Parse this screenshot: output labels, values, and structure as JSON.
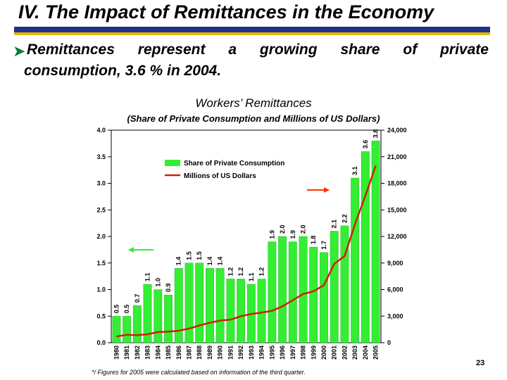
{
  "slide": {
    "title": "IV. The Impact of Remittances in the Economy",
    "bullet_words_line1": [
      "Remittances",
      "represent",
      "a",
      "growing",
      "share",
      "of",
      "private"
    ],
    "bullet_line2": "consumption, 3.6 % in 2004.",
    "footnote": "*/ Figures for 2005 were calculated based on information of the third quarter.",
    "page_number": "23"
  },
  "colors": {
    "bar": "#33ee33",
    "line": "#cc2200",
    "arrow": "#ff3300",
    "bullet": "#0e7a3b",
    "title_rule": "#1f2f8c",
    "title_rule_accent": "#e6b800"
  },
  "chart_data": {
    "type": "bar",
    "title": "Workers’ Remittances",
    "subtitle": "(Share of Private Consumption and Millions of US Dollars)",
    "categories": [
      "1980",
      "1981",
      "1982",
      "1983",
      "1984",
      "1985",
      "1986",
      "1987",
      "1988",
      "1989",
      "1990",
      "1991",
      "1992",
      "1993",
      "1994",
      "1995",
      "1996",
      "1997",
      "1998",
      "1999",
      "2000",
      "2001",
      "2002",
      "2003",
      "2004",
      "2005"
    ],
    "series": [
      {
        "name": "Share of Private Consumption",
        "type": "bar",
        "axis": "left",
        "values": [
          0.5,
          0.5,
          0.7,
          1.1,
          1.0,
          0.9,
          1.4,
          1.5,
          1.5,
          1.4,
          1.4,
          1.2,
          1.2,
          1.1,
          1.2,
          1.9,
          2.0,
          1.9,
          2.0,
          1.8,
          1.7,
          2.1,
          2.2,
          3.1,
          3.6,
          3.8
        ],
        "labels": [
          "0.5",
          "0.5",
          "0.7",
          "1.1",
          "1.0",
          "0.9",
          "1.4",
          "1.5",
          "1.5",
          "1.4",
          "1.4",
          "1.2",
          "1.2",
          "1.1",
          "1.2",
          "1.9",
          "2.0",
          "1.9",
          "2.0",
          "1.8",
          "1.7",
          "2.1",
          "2.2",
          "3.1",
          "3.6",
          "3.8"
        ]
      },
      {
        "name": "Millions of US Dollars",
        "type": "line",
        "axis": "right",
        "values": [
          700,
          900,
          850,
          950,
          1200,
          1250,
          1350,
          1600,
          1950,
          2250,
          2500,
          2600,
          3000,
          3250,
          3400,
          3600,
          4100,
          4800,
          5500,
          5800,
          6500,
          8900,
          9800,
          13400,
          16600,
          20000
        ]
      }
    ],
    "y_left": {
      "min": 0,
      "max": 4,
      "ticks": [
        "0.0",
        "0.5",
        "1.0",
        "1.5",
        "2.0",
        "2.5",
        "3.0",
        "3.5",
        "4.0"
      ]
    },
    "y_right": {
      "min": 0,
      "max": 24000,
      "ticks": [
        "0",
        "3,000",
        "6,000",
        "9,000",
        "12,000",
        "15,000",
        "18,000",
        "21,000",
        "24,000"
      ]
    },
    "legend": "top-left, inside plot"
  }
}
